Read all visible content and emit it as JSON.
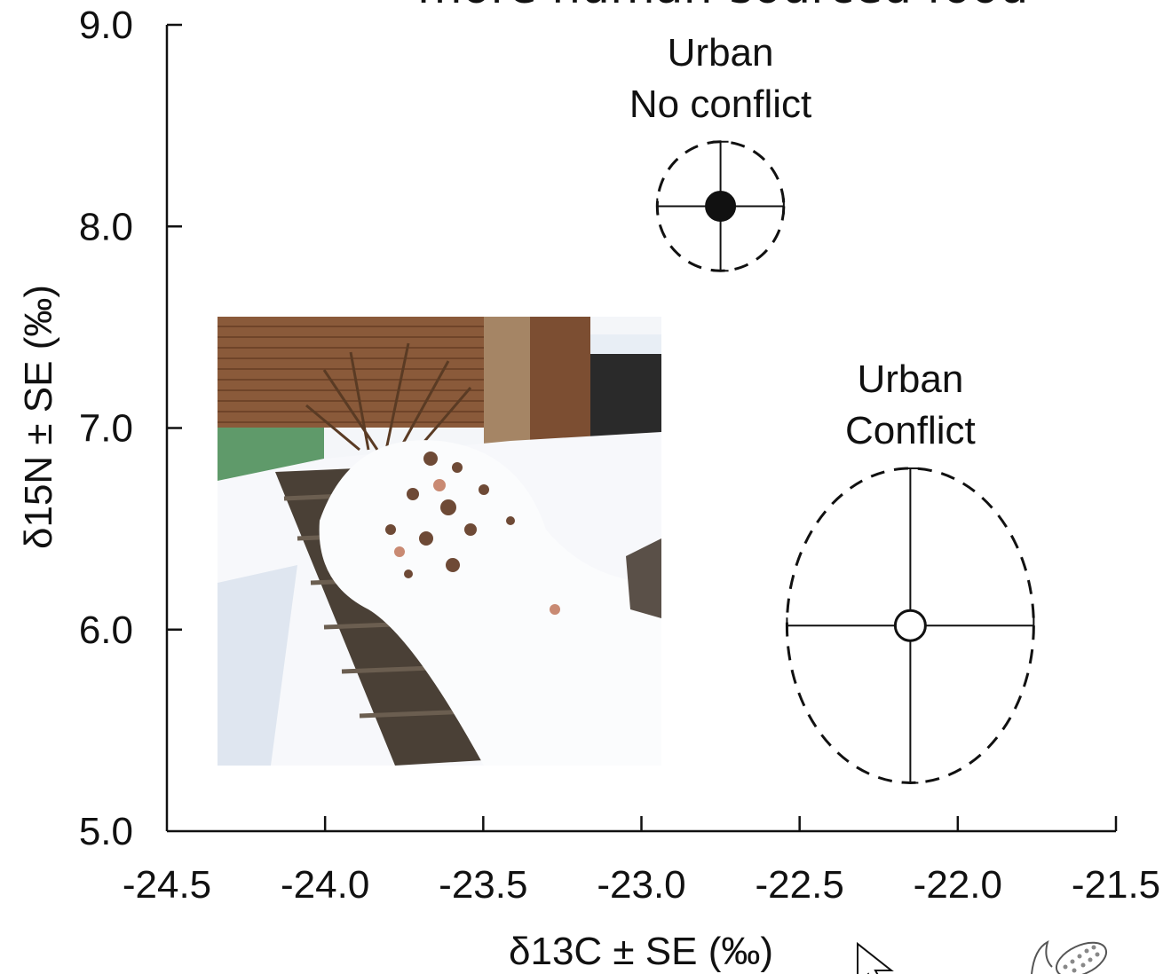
{
  "slide_title": "more human-sourced food",
  "chart_data": {
    "type": "scatter",
    "title": "",
    "xlabel": "δ13C ± SE (‰)",
    "ylabel": "δ15N ± SE (‰)",
    "xlim": [
      -24.5,
      -21.5
    ],
    "ylim": [
      5.0,
      9.0
    ],
    "x_ticks": [
      -24.5,
      -24.0,
      -23.5,
      -23.0,
      -22.5,
      -22.0,
      -21.5
    ],
    "x_tick_labels": [
      "-24.5",
      "-24.0",
      "-23.5",
      "-23.0",
      "-22.5",
      "-22.0",
      "-21.5"
    ],
    "y_ticks": [
      5.0,
      6.0,
      7.0,
      8.0,
      9.0
    ],
    "y_tick_labels": [
      "5.0",
      "6.0",
      "7.0",
      "8.0",
      "9.0"
    ],
    "grid": false,
    "series": [
      {
        "label_lines": [
          "Urban",
          "No conflict"
        ],
        "marker": "filled-circle",
        "x": -22.75,
        "y": 8.1,
        "x_err": 0.2,
        "y_err": 0.32
      },
      {
        "label_lines": [
          "Urban",
          "Conflict"
        ],
        "marker": "open-circle",
        "x": -22.15,
        "y": 6.02,
        "x_err": 0.39,
        "y_err": 0.78
      }
    ]
  },
  "inset_photo": {
    "subject": "snow-covered compost bin with food scraps"
  },
  "cursor_icon": "arrow-cursor-icon",
  "corner_icon": "corn-cob-icon",
  "colors": {
    "ink": "#111111",
    "background": "#ffffff"
  }
}
